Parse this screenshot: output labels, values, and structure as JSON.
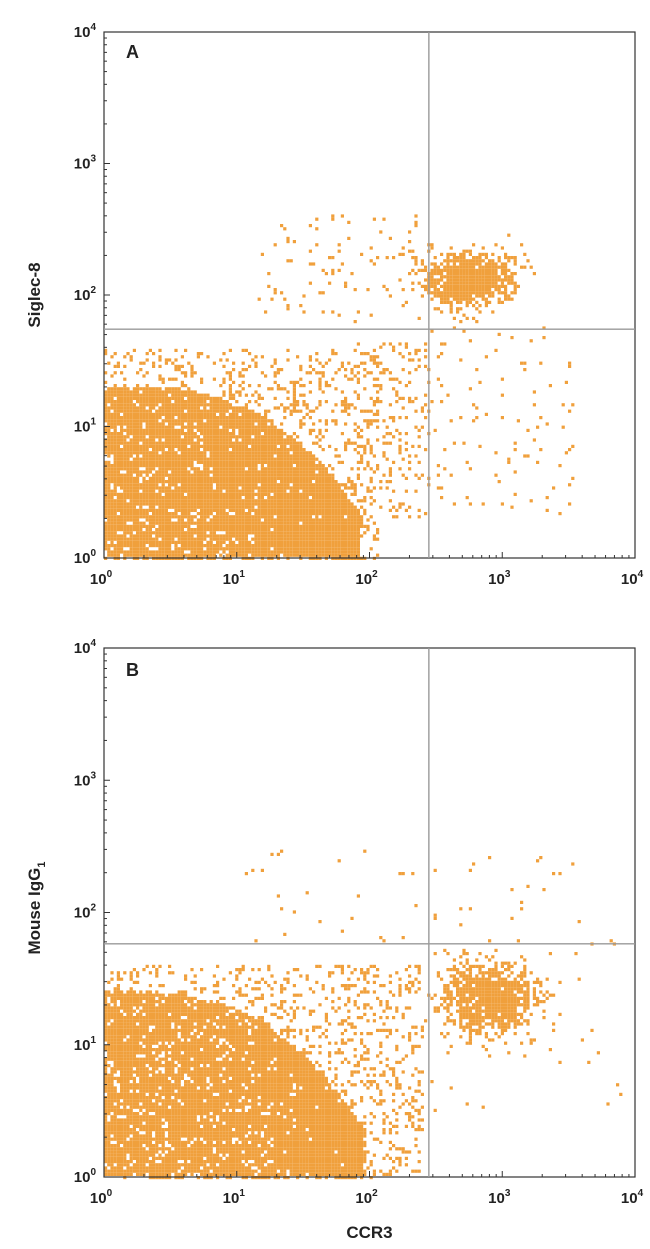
{
  "chart_data": [
    {
      "type": "scatter",
      "panel_label": "A",
      "xlabel": "",
      "ylabel": "Siglec-8",
      "x_scale": "log",
      "y_scale": "log",
      "xlim": [
        1,
        10000
      ],
      "ylim": [
        1,
        10000
      ],
      "x_ticks": [
        {
          "base": "10",
          "exp": "0"
        },
        {
          "base": "10",
          "exp": "1"
        },
        {
          "base": "10",
          "exp": "2"
        },
        {
          "base": "10",
          "exp": "3"
        },
        {
          "base": "10",
          "exp": "4"
        }
      ],
      "y_ticks": [
        {
          "base": "10",
          "exp": "0"
        },
        {
          "base": "10",
          "exp": "1"
        },
        {
          "base": "10",
          "exp": "2"
        },
        {
          "base": "10",
          "exp": "3"
        },
        {
          "base": "10",
          "exp": "4"
        }
      ],
      "quadrant_gate": {
        "x": 280,
        "y": 55
      },
      "grid": false,
      "point_color": "#F0A03C",
      "line_color": "#9a9a9a",
      "populations": [
        {
          "name": "double-negative",
          "shape": "triangle",
          "x_range": [
            1,
            85
          ],
          "y_range": [
            1,
            20
          ],
          "count": 9000
        },
        {
          "name": "double-negative-fringe",
          "shape": "box",
          "x_range": [
            1,
            120
          ],
          "y_range": [
            1,
            38
          ],
          "count": 1300
        },
        {
          "name": "ccr3+siglec8+",
          "shape": "cluster",
          "x_center": 550,
          "y_center": 130,
          "x_spread": 0.17,
          "y_spread": 0.1,
          "count": 900
        },
        {
          "name": "q2-scatter",
          "shape": "box",
          "x_range": [
            120,
            3500
          ],
          "y_range": [
            2,
            55
          ],
          "count": 140
        },
        {
          "name": "q1-scatter",
          "shape": "box",
          "x_range": [
            15,
            280
          ],
          "y_range": [
            60,
            400
          ],
          "count": 90
        },
        {
          "name": "transition",
          "shape": "box",
          "x_range": [
            80,
            280
          ],
          "y_range": [
            2,
            45
          ],
          "count": 150
        }
      ]
    },
    {
      "type": "scatter",
      "panel_label": "B",
      "xlabel": "CCR3",
      "ylabel": "Mouse IgG",
      "ylabel_subscript": "1",
      "x_scale": "log",
      "y_scale": "log",
      "xlim": [
        1,
        10000
      ],
      "ylim": [
        1,
        10000
      ],
      "x_ticks": [
        {
          "base": "10",
          "exp": "0"
        },
        {
          "base": "10",
          "exp": "1"
        },
        {
          "base": "10",
          "exp": "2"
        },
        {
          "base": "10",
          "exp": "3"
        },
        {
          "base": "10",
          "exp": "4"
        }
      ],
      "y_ticks": [
        {
          "base": "10",
          "exp": "0"
        },
        {
          "base": "10",
          "exp": "1"
        },
        {
          "base": "10",
          "exp": "2"
        },
        {
          "base": "10",
          "exp": "3"
        },
        {
          "base": "10",
          "exp": "4"
        }
      ],
      "quadrant_gate": {
        "x": 280,
        "y": 58
      },
      "grid": false,
      "point_color": "#F0A03C",
      "line_color": "#9a9a9a",
      "populations": [
        {
          "name": "double-negative",
          "shape": "triangle",
          "x_range": [
            1,
            90
          ],
          "y_range": [
            1,
            25
          ],
          "count": 9000
        },
        {
          "name": "double-negative-fringe",
          "shape": "box",
          "x_range": [
            1,
            250
          ],
          "y_range": [
            1,
            40
          ],
          "count": 1500
        },
        {
          "name": "ccr3+isotype",
          "shape": "cluster",
          "x_center": 800,
          "y_center": 23,
          "x_spread": 0.17,
          "y_spread": 0.13,
          "count": 1000
        },
        {
          "name": "q1-scatter",
          "shape": "box",
          "x_range": [
            10,
            280
          ],
          "y_range": [
            60,
            300
          ],
          "count": 25
        },
        {
          "name": "q2-scatter",
          "shape": "box",
          "x_range": [
            280,
            8000
          ],
          "y_range": [
            3,
            300
          ],
          "count": 60
        }
      ]
    }
  ]
}
